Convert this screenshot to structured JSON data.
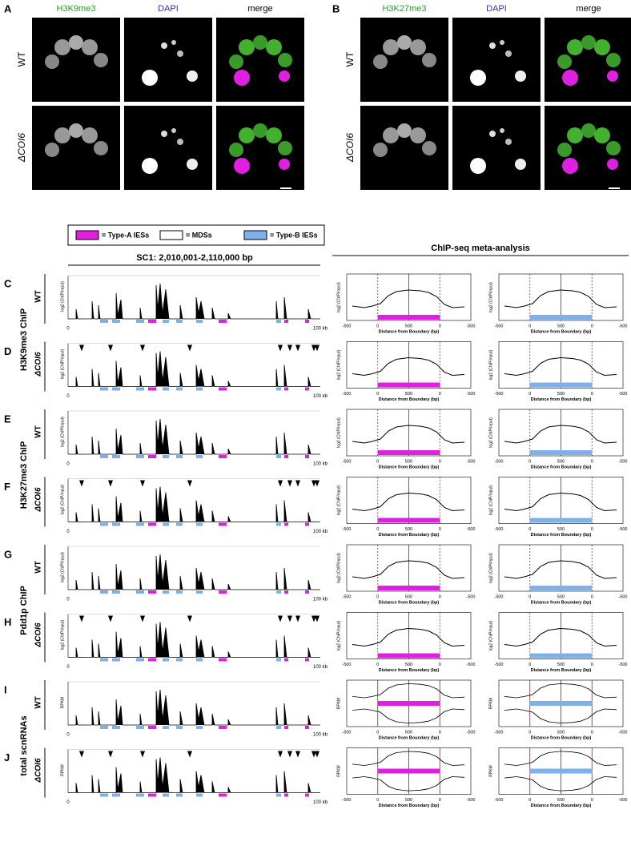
{
  "panel_a": {
    "letter": "A",
    "columns": [
      "H3K9me3",
      "DAPI",
      "merge"
    ],
    "rows": [
      "WT",
      "ΔCOI6"
    ]
  },
  "panel_b": {
    "letter": "B",
    "columns": [
      "H3K27me3",
      "DAPI",
      "merge"
    ],
    "rows": [
      "WT",
      "ΔCOI6"
    ]
  },
  "legend": {
    "items": [
      "= Type-A IESs",
      "= MDSs",
      "= Type-B IESs"
    ]
  },
  "track_header": "SC1: 2,010,001-2,110,000 bp",
  "meta_header": "ChIP-seq meta-analysis",
  "groups": [
    {
      "label": "H3K9me3 ChIP",
      "y_label": "log2 (ChIP/input)",
      "rows": [
        {
          "letter": "C",
          "genotype": "WT"
        },
        {
          "letter": "D",
          "genotype": "ΔCOI6"
        }
      ]
    },
    {
      "label": "H3K27me3 ChIP",
      "y_label": "log2 (ChIP/input)",
      "rows": [
        {
          "letter": "E",
          "genotype": "WT"
        },
        {
          "letter": "F",
          "genotype": "ΔCOI6"
        }
      ]
    },
    {
      "label": "Pdd1p ChIP",
      "y_label": "log2 (ChIP/input)",
      "rows": [
        {
          "letter": "G",
          "genotype": "WT"
        },
        {
          "letter": "H",
          "genotype": "ΔCOI6"
        }
      ]
    },
    {
      "label": "total scnRNAs",
      "y_label": "RPKM",
      "rows": [
        {
          "letter": "I",
          "genotype": "WT"
        },
        {
          "letter": "J",
          "genotype": "ΔCOI6"
        }
      ]
    }
  ],
  "track_axis": {
    "x_start": "0",
    "x_end": "100 kb"
  },
  "meta_axis": {
    "x_ticks": [
      "-500",
      "0",
      "500",
      "0",
      "-500"
    ],
    "x_label": "Distance from Boundary (bp)"
  }
}
